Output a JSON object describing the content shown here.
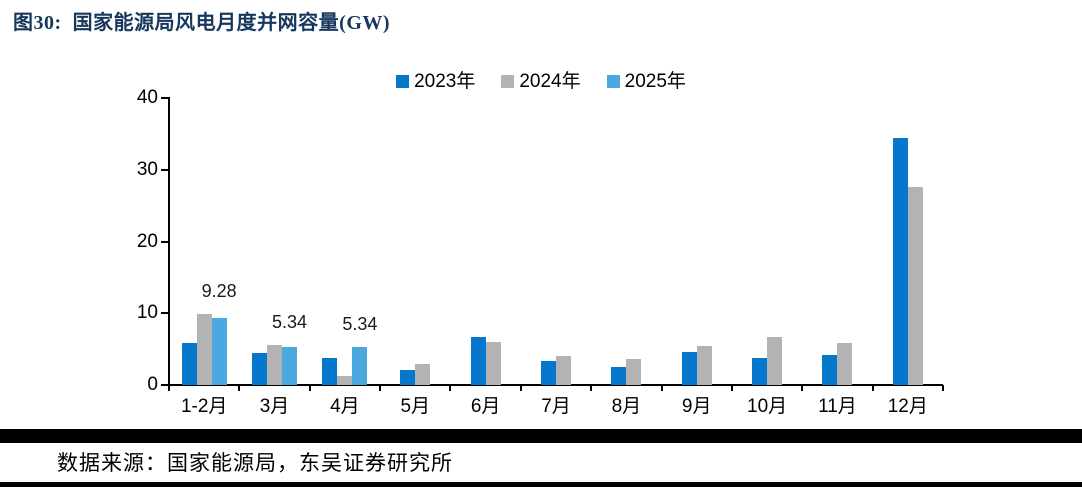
{
  "source_note": "数据来源：国家能源局，东吴证券研究所",
  "colors": {
    "title_navy": "#17375C",
    "axis_black": "#000000",
    "value_label": "#1A1A1A"
  },
  "chart_data": {
    "type": "bar",
    "title": "图30:  国家能源局风电月度并网容量(GW)",
    "categories": [
      "1-2月",
      "3月",
      "4月",
      "5月",
      "6月",
      "7月",
      "8月",
      "9月",
      "10月",
      "11月",
      "12月"
    ],
    "series": [
      {
        "name": "2023年",
        "color": "#0577CD",
        "values": [
          5.84,
          4.5,
          3.8,
          2.08,
          6.66,
          3.28,
          2.57,
          4.61,
          3.76,
          4.14,
          34.41
        ]
      },
      {
        "name": "2024年",
        "color": "#B3B3B3",
        "values": [
          9.92,
          5.52,
          1.25,
          2.87,
          6.06,
          4.04,
          3.61,
          5.41,
          6.68,
          5.89,
          27.62
        ]
      },
      {
        "name": "2025年",
        "color": "#4CA8E0",
        "values": [
          9.28,
          5.34,
          5.34,
          null,
          null,
          null,
          null,
          null,
          null,
          null,
          null
        ]
      }
    ],
    "annotations": [
      {
        "text": "9.28",
        "series": "2025年",
        "category_index": 0
      },
      {
        "text": "5.34",
        "series": "2025年",
        "category_index": 1
      },
      {
        "text": "5.34",
        "series": "2025年",
        "category_index": 2
      }
    ],
    "xlabel": "",
    "ylabel": "",
    "ylim": [
      0,
      40
    ],
    "yticks": [
      0,
      10,
      20,
      30,
      40
    ],
    "grid": false,
    "legend_position": "top-center"
  }
}
